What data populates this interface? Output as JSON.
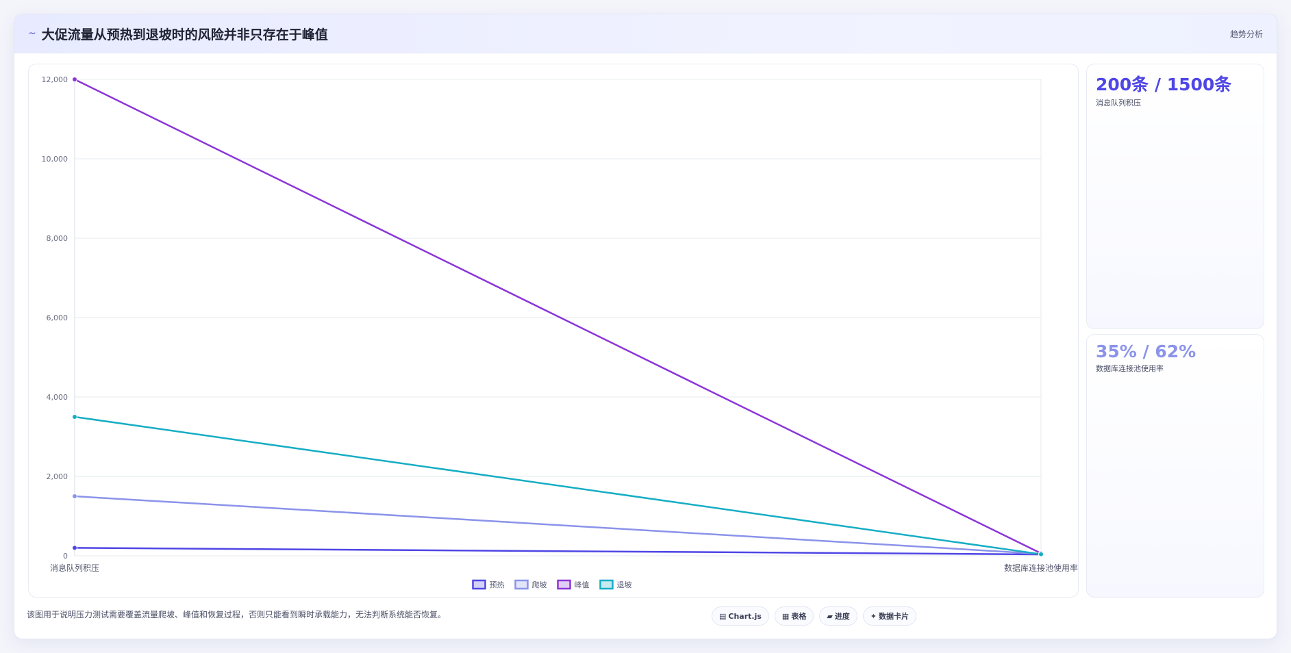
{
  "header": {
    "icon": "~",
    "title": "大促流量从预热到退坡时的风险并非只存在于峰值",
    "tag": "趋势分析"
  },
  "chart_data": {
    "type": "line",
    "categories": [
      "消息队列积压",
      "数据库连接池使用率"
    ],
    "series": [
      {
        "name": "预热",
        "values": [
          200,
          35
        ],
        "color": "#4f46e5"
      },
      {
        "name": "爬坡",
        "values": [
          1500,
          48
        ],
        "color": "#8b93ea"
      },
      {
        "name": "峰值",
        "values": [
          12000,
          62
        ],
        "color": "#8b36d9"
      },
      {
        "name": "退坡",
        "values": [
          3500,
          40
        ],
        "color": "#16adc4"
      }
    ],
    "ylim": [
      0,
      12000
    ],
    "yticks": [
      "0",
      "2,000",
      "4,000",
      "6,000",
      "8,000",
      "10,000",
      "12,000"
    ],
    "grid": true,
    "legend": "bottom"
  },
  "stats": [
    {
      "value": "200条 / 1500条",
      "label": "消息队列积压",
      "color": "#4f46e5"
    },
    {
      "value": "35% / 62%",
      "label": "数据库连接池使用率",
      "color": "#8b93ea"
    }
  ],
  "footer": {
    "note": "该图用于说明压力测试需要覆盖流量爬坡、峰值和恢复过程，否则只能看到瞬时承载能力，无法判断系统能否恢复。",
    "chips": [
      {
        "icon": "▤",
        "label": "Chart.js"
      },
      {
        "icon": "▦",
        "label": "表格"
      },
      {
        "icon": "▰",
        "label": "进度"
      },
      {
        "icon": "✦",
        "label": "数据卡片"
      }
    ]
  }
}
